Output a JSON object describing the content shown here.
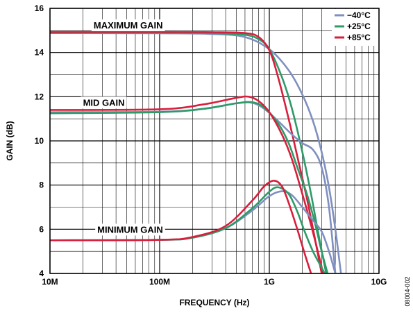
{
  "chart_data": {
    "type": "line",
    "title": "",
    "xlabel": "FREQUENCY (Hz)",
    "ylabel": "GAIN (dB)",
    "x_scale": "log",
    "xlim": [
      10000000,
      10000000000
    ],
    "ylim": [
      4,
      16
    ],
    "x_ticks": [
      {
        "value": 10000000,
        "label": "10M"
      },
      {
        "value": 100000000,
        "label": "100M"
      },
      {
        "value": 1000000000,
        "label": "1G"
      },
      {
        "value": 10000000000,
        "label": "10G"
      }
    ],
    "y_ticks": [
      {
        "value": 4,
        "label": "4"
      },
      {
        "value": 6,
        "label": "6"
      },
      {
        "value": 8,
        "label": "8"
      },
      {
        "value": 10,
        "label": "10"
      },
      {
        "value": 12,
        "label": "12"
      },
      {
        "value": 14,
        "label": "14"
      },
      {
        "value": 16,
        "label": "16"
      }
    ],
    "grid": true,
    "legend": {
      "placement": "top-right",
      "entries": [
        {
          "name": "−40°C",
          "color": "#7f8fbf"
        },
        {
          "name": "+25°C",
          "color": "#2e9a68"
        },
        {
          "name": "+85°C",
          "color": "#d81e3c"
        }
      ]
    },
    "annotations": [
      {
        "text": "MAXIMUM GAIN",
        "x": 25000000,
        "y": 15.25
      },
      {
        "text": "MID GAIN",
        "x": 20000000,
        "y": 11.75
      },
      {
        "text": "MINIMUM GAIN",
        "x": 27000000,
        "y": 6.0
      }
    ],
    "series": [
      {
        "name": "−40°C",
        "group": "MAXIMUM GAIN",
        "color": "#7f8fbf",
        "x": [
          10000000,
          100000000,
          300000000,
          600000000,
          1000000000,
          1500000000,
          2000000000,
          2500000000,
          3000000000,
          3500000000,
          4000000000,
          4500000000
        ],
        "y": [
          14.88,
          14.87,
          14.84,
          14.7,
          14.15,
          13.2,
          12.1,
          10.9,
          9.5,
          7.9,
          6.0,
          4.0
        ]
      },
      {
        "name": "+25°C",
        "group": "MAXIMUM GAIN",
        "color": "#2e9a68",
        "x": [
          10000000,
          100000000,
          300000000,
          600000000,
          800000000,
          1000000000,
          1300000000,
          1600000000,
          2000000000,
          2400000000,
          2800000000,
          3300000000
        ],
        "y": [
          14.9,
          14.9,
          14.88,
          14.8,
          14.6,
          14.15,
          12.9,
          11.5,
          9.5,
          7.6,
          5.8,
          4.0
        ]
      },
      {
        "name": "+85°C",
        "group": "MAXIMUM GAIN",
        "color": "#d81e3c",
        "x": [
          10000000,
          100000000,
          300000000,
          600000000,
          800000000,
          1000000000,
          1200000000,
          1500000000,
          1800000000,
          2200000000,
          2600000000,
          3000000000
        ],
        "y": [
          14.93,
          14.93,
          14.92,
          14.88,
          14.7,
          14.1,
          12.9,
          11.0,
          9.3,
          7.4,
          5.6,
          4.0
        ]
      },
      {
        "name": "−40°C",
        "group": "MID GAIN",
        "color": "#7f8fbf",
        "x": [
          10000000,
          100000000,
          250000000,
          500000000,
          700000000,
          900000000,
          1200000000,
          1600000000,
          2000000000,
          2500000000,
          3000000000,
          3500000000,
          4000000000
        ],
        "y": [
          11.3,
          11.32,
          11.45,
          11.7,
          11.72,
          11.45,
          10.9,
          10.3,
          9.9,
          9.6,
          8.8,
          7.0,
          4.0
        ]
      },
      {
        "name": "+25°C",
        "group": "MID GAIN",
        "color": "#2e9a68",
        "x": [
          10000000,
          100000000,
          250000000,
          500000000,
          700000000,
          900000000,
          1200000000,
          1500000000,
          1800000000,
          2200000000,
          2600000000,
          3000000000,
          3400000000
        ],
        "y": [
          11.25,
          11.3,
          11.45,
          11.7,
          11.75,
          11.5,
          10.8,
          9.9,
          8.8,
          7.6,
          6.3,
          5.0,
          4.0
        ]
      },
      {
        "name": "+85°C",
        "group": "MID GAIN",
        "color": "#d81e3c",
        "x": [
          10000000,
          100000000,
          250000000,
          500000000,
          650000000,
          800000000,
          1000000000,
          1300000000,
          1600000000,
          2000000000,
          2400000000,
          2800000000,
          3100000000
        ],
        "y": [
          11.4,
          11.43,
          11.65,
          11.95,
          12.0,
          11.8,
          11.3,
          10.3,
          9.2,
          7.6,
          6.2,
          4.9,
          4.0
        ]
      },
      {
        "name": "−40°C",
        "group": "MINIMUM GAIN",
        "color": "#7f8fbf",
        "x": [
          10000000,
          100000000,
          200000000,
          400000000,
          700000000,
          1000000000,
          1300000000,
          1600000000,
          2000000000,
          2500000000,
          3000000000,
          3500000000,
          4000000000
        ],
        "y": [
          5.5,
          5.52,
          5.62,
          6.05,
          6.85,
          7.5,
          7.72,
          7.55,
          7.0,
          6.4,
          5.9,
          5.0,
          4.0
        ]
      },
      {
        "name": "+25°C",
        "group": "MINIMUM GAIN",
        "color": "#2e9a68",
        "x": [
          10000000,
          100000000,
          200000000,
          400000000,
          700000000,
          1000000000,
          1200000000,
          1500000000,
          1800000000,
          2100000000,
          2500000000,
          2900000000,
          3200000000
        ],
        "y": [
          5.5,
          5.52,
          5.62,
          6.05,
          6.95,
          7.7,
          7.9,
          7.6,
          6.8,
          5.9,
          5.0,
          4.4,
          4.0
        ]
      },
      {
        "name": "+85°C",
        "group": "MINIMUM GAIN",
        "color": "#d81e3c",
        "x": [
          10000000,
          100000000,
          200000000,
          400000000,
          700000000,
          900000000,
          1100000000,
          1300000000,
          1500000000,
          1800000000,
          2100000000,
          2400000000
        ],
        "y": [
          5.5,
          5.52,
          5.65,
          6.15,
          7.3,
          7.95,
          8.2,
          7.95,
          7.2,
          6.0,
          4.9,
          4.0
        ]
      }
    ]
  },
  "figure_id": "08004-002"
}
